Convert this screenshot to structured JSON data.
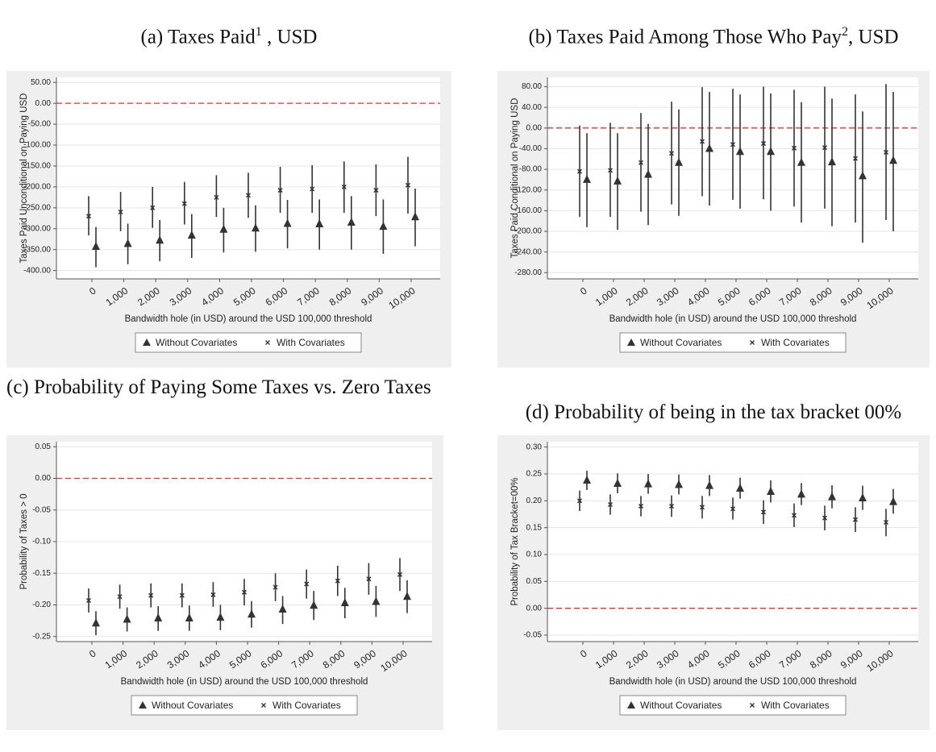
{
  "chart_data": [
    {
      "type": "errorbar",
      "title": "(a) Taxes Paid",
      "title_sup": "1",
      "title_suffix": " , USD",
      "ylabel": "Taxes Paid Unconditional on Paying  USD",
      "xlabel": "Bandwidth hole (in USD) around the USD 100,000 threshold",
      "categories": [
        "0",
        "1,000",
        "2,000",
        "3,000",
        "4,000",
        "5,000",
        "6,000",
        "7,000",
        "8,000",
        "9,000",
        "10,000"
      ],
      "series": [
        {
          "name": "Without Covariates",
          "marker": "triangle",
          "color": "#333333",
          "values": [
            -343,
            -336,
            -328,
            -316,
            -302,
            -299,
            -288,
            -289,
            -285,
            -295,
            -272
          ],
          "lower": [
            -392,
            -385,
            -378,
            -370,
            -357,
            -355,
            -347,
            -350,
            -350,
            -360,
            -342
          ],
          "upper": [
            -296,
            -288,
            -279,
            -265,
            -250,
            -244,
            -231,
            -230,
            -222,
            -230,
            -204
          ]
        },
        {
          "name": "With Covariates",
          "marker": "x",
          "color": "#333333",
          "values": [
            -270,
            -260,
            -250,
            -240,
            -225,
            -220,
            -208,
            -205,
            -200,
            -208,
            -196
          ],
          "lower": [
            -316,
            -306,
            -298,
            -290,
            -272,
            -274,
            -262,
            -262,
            -262,
            -270,
            -264
          ],
          "upper": [
            -222,
            -212,
            -200,
            -188,
            -172,
            -166,
            -152,
            -148,
            -139,
            -146,
            -128
          ]
        }
      ],
      "ylim": [
        -420,
        62
      ],
      "yticks": [
        {
          "value": 50,
          "label": "50.00"
        },
        {
          "value": 0,
          "label": "0.00"
        },
        {
          "value": -50,
          "label": "-50.00"
        },
        {
          "value": -100,
          "label": "-100.00"
        },
        {
          "value": -150,
          "label": "-150.00"
        },
        {
          "value": -200,
          "label": "-200.00"
        },
        {
          "value": -250,
          "label": "-250.00"
        },
        {
          "value": -300,
          "label": "-300.00"
        },
        {
          "value": -350,
          "label": "-350.00"
        },
        {
          "value": -400,
          "label": "-400.00"
        }
      ],
      "hline": 0,
      "hline_color": "#e8302a",
      "grid": true,
      "legend": "bottom"
    },
    {
      "type": "errorbar",
      "title": "(b) Taxes Paid Among Those Who Pay",
      "title_sup": "2",
      "title_suffix": ", USD",
      "ylabel": "Taxes Paid Conditional on Paying USD",
      "xlabel": "Bandwidth hole (in USD) around the USD 100,000 threshold",
      "categories": [
        "0",
        "1,000",
        "2,000",
        "3,000",
        "4,000",
        "5,000",
        "6,000",
        "7,000",
        "8,000",
        "9,000",
        "10,000"
      ],
      "series": [
        {
          "name": "Without Covariates",
          "marker": "triangle",
          "color": "#333333",
          "values": [
            -100,
            -103,
            -90,
            -67,
            -40,
            -46,
            -46,
            -67,
            -66,
            -93,
            -63
          ],
          "lower": [
            -192,
            -197,
            -188,
            -170,
            -150,
            -156,
            -160,
            -183,
            -190,
            -222,
            -200
          ],
          "upper": [
            -10,
            -10,
            8,
            36,
            70,
            65,
            67,
            50,
            57,
            32,
            70
          ]
        },
        {
          "name": "With Covariates",
          "marker": "x",
          "color": "#333333",
          "values": [
            -84,
            -82,
            -67,
            -49,
            -26,
            -32,
            -30,
            -39,
            -38,
            -59,
            -47
          ],
          "lower": [
            -172,
            -172,
            -162,
            -148,
            -132,
            -139,
            -138,
            -152,
            -156,
            -183,
            -178
          ],
          "upper": [
            5,
            10,
            29,
            51,
            79,
            76,
            80,
            74,
            80,
            65,
            85
          ]
        }
      ],
      "ylim": [
        -292,
        98
      ],
      "yticks": [
        {
          "value": 80,
          "label": "80.00"
        },
        {
          "value": 40,
          "label": "40.00"
        },
        {
          "value": 0,
          "label": "0.00"
        },
        {
          "value": -40,
          "label": "-40.00"
        },
        {
          "value": -80,
          "label": "-80.00"
        },
        {
          "value": -120,
          "label": "-120.00"
        },
        {
          "value": -160,
          "label": "-160.00"
        },
        {
          "value": -200,
          "label": "-200.00"
        },
        {
          "value": -240,
          "label": "-240.00"
        },
        {
          "value": -280,
          "label": "-280.00"
        }
      ],
      "hline": 0,
      "hline_color": "#e8302a",
      "grid": true,
      "legend": "bottom"
    },
    {
      "type": "errorbar",
      "title": "(c) Probability of Paying Some Taxes vs. Zero Taxes",
      "ylabel": "Probability of Taxes > 0",
      "xlabel": "Bandwidth hole (in USD) around the USD 100,000 threshold",
      "categories": [
        "0",
        "1,000",
        "2,000",
        "3,000",
        "4,000",
        "5,000",
        "6,000",
        "7,000",
        "8,000",
        "9,000",
        "10,000"
      ],
      "series": [
        {
          "name": "Without Covariates",
          "marker": "triangle",
          "color": "#333333",
          "values": [
            -0.229,
            -0.223,
            -0.221,
            -0.221,
            -0.22,
            -0.215,
            -0.207,
            -0.201,
            -0.197,
            -0.195,
            -0.187
          ],
          "lower": [
            -0.248,
            -0.242,
            -0.241,
            -0.241,
            -0.24,
            -0.236,
            -0.23,
            -0.224,
            -0.221,
            -0.219,
            -0.213
          ],
          "upper": [
            -0.21,
            -0.204,
            -0.202,
            -0.201,
            -0.2,
            -0.194,
            -0.186,
            -0.178,
            -0.173,
            -0.17,
            -0.161
          ]
        },
        {
          "name": "With Covariates",
          "marker": "x",
          "color": "#333333",
          "values": [
            -0.193,
            -0.187,
            -0.185,
            -0.185,
            -0.184,
            -0.18,
            -0.172,
            -0.167,
            -0.162,
            -0.159,
            -0.152
          ],
          "lower": [
            -0.212,
            -0.206,
            -0.204,
            -0.204,
            -0.203,
            -0.201,
            -0.194,
            -0.19,
            -0.186,
            -0.184,
            -0.178
          ],
          "upper": [
            -0.174,
            -0.168,
            -0.166,
            -0.166,
            -0.164,
            -0.159,
            -0.15,
            -0.144,
            -0.138,
            -0.134,
            -0.126
          ]
        }
      ],
      "ylim": [
        -0.258,
        0.058
      ],
      "yticks": [
        0.05,
        {
          "value": 0,
          "label": "0.00"
        },
        -0.05,
        {
          "value": -0.1,
          "label": "-0.10"
        },
        -0.15,
        {
          "value": -0.2,
          "label": "-0.20"
        },
        -0.25
      ],
      "hline": 0,
      "hline_color": "#e8302a",
      "grid": true,
      "legend": "bottom"
    },
    {
      "type": "errorbar",
      "title": "(d) Probability of being in the tax bracket 00%",
      "ylabel": "Probability of Tax Bracket=00%",
      "xlabel": "Bandwidth hole (in USD) around the USD 100,000 threshold",
      "categories": [
        "0",
        "1,000",
        "2,000",
        "3,000",
        "4,000",
        "5,000",
        "6,000",
        "7,000",
        "8,000",
        "9,000",
        "10,000"
      ],
      "series": [
        {
          "name": "Without Covariates",
          "marker": "triangle",
          "color": "#333333",
          "values": [
            0.238,
            0.232,
            0.231,
            0.23,
            0.228,
            0.223,
            0.217,
            0.212,
            0.207,
            0.205,
            0.198
          ],
          "lower": [
            0.22,
            0.214,
            0.213,
            0.212,
            0.209,
            0.204,
            0.197,
            0.192,
            0.186,
            0.183,
            0.176
          ],
          "upper": [
            0.256,
            0.251,
            0.25,
            0.249,
            0.248,
            0.243,
            0.238,
            0.233,
            0.229,
            0.228,
            0.222
          ]
        },
        {
          "name": "With Covariates",
          "marker": "x",
          "color": "#333333",
          "values": [
            0.2,
            0.193,
            0.19,
            0.19,
            0.188,
            0.185,
            0.179,
            0.173,
            0.168,
            0.165,
            0.16
          ],
          "lower": [
            0.181,
            0.174,
            0.171,
            0.17,
            0.167,
            0.165,
            0.157,
            0.151,
            0.145,
            0.142,
            0.134
          ],
          "upper": [
            0.219,
            0.212,
            0.209,
            0.21,
            0.209,
            0.206,
            0.201,
            0.195,
            0.191,
            0.188,
            0.185
          ]
        }
      ],
      "ylim": [
        -0.062,
        0.31
      ],
      "yticks": [
        {
          "value": 0.3,
          "label": "0.30"
        },
        0.25,
        {
          "value": 0.2,
          "label": "0.20"
        },
        0.15,
        {
          "value": 0.1,
          "label": "0.10"
        },
        0.05,
        {
          "value": 0,
          "label": "0.00"
        },
        -0.05
      ],
      "hline": 0,
      "hline_color": "#e8302a",
      "grid": true,
      "legend": "bottom"
    }
  ]
}
